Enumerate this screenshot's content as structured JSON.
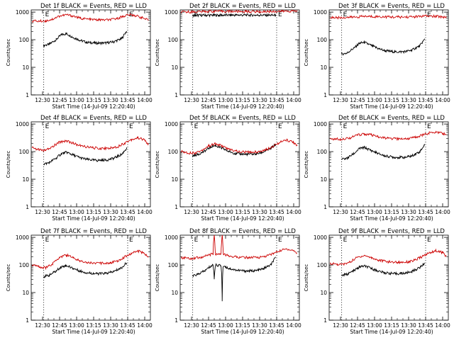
{
  "figure": {
    "background": "#ffffff",
    "event_color": "#000000",
    "lld_color": "#cc0000"
  },
  "chart_data": [
    {
      "type": "line",
      "title": "Det 1f BLACK = Events, RED = LLD",
      "xlabel": "Start Time (14-Jul-09 12:20:40)",
      "ylabel": "Counts/sec",
      "yscale": "log",
      "ylim": [
        1,
        1200
      ],
      "xlim": [
        12.3333,
        14.0833
      ],
      "x_ticks": [
        "12:30",
        "12:45",
        "13:00",
        "13:15",
        "13:30",
        "13:45",
        "14:00"
      ],
      "y_ticks": [
        "1",
        "10",
        "100",
        "1000"
      ],
      "vlines": [
        12.5167,
        13.75
      ],
      "marker_labels": [
        "E",
        "E"
      ],
      "series": [
        {
          "name": "Events",
          "color": "#000000",
          "x": [
            12.5167,
            12.6,
            12.7,
            12.7833,
            12.85,
            12.95,
            13.05,
            13.15,
            13.3,
            13.45,
            13.55,
            13.6667,
            13.7333
          ],
          "y": [
            62,
            68,
            100,
            155,
            165,
            120,
            95,
            80,
            75,
            77,
            85,
            110,
            200
          ]
        },
        {
          "name": "LLD",
          "color": "#cc0000",
          "x": [
            12.35,
            12.45,
            12.55,
            12.65,
            12.75,
            12.85,
            12.95,
            13.05,
            13.2,
            13.35,
            13.5,
            13.6,
            13.7,
            13.75,
            13.85,
            13.95,
            14.05
          ],
          "y": [
            480,
            470,
            480,
            560,
            720,
            800,
            720,
            600,
            540,
            520,
            520,
            600,
            720,
            800,
            760,
            640,
            500
          ]
        }
      ]
    },
    {
      "type": "line",
      "title": "Det 2f BLACK = Events, RED = LLD",
      "xlabel": "Start Time (14-Jul-09 12:20:40)",
      "ylabel": "Counts/sec",
      "yscale": "log",
      "ylim": [
        1,
        1200
      ],
      "xlim": [
        12.3333,
        14.0833
      ],
      "x_ticks": [
        "12:30",
        "12:45",
        "13:00",
        "13:15",
        "13:30",
        "13:45",
        "14:00"
      ],
      "y_ticks": [
        "1",
        "10",
        "100",
        "1000"
      ],
      "vlines": [
        12.5167,
        13.75
      ],
      "marker_labels": [
        "E",
        "E"
      ],
      "series": [
        {
          "name": "Events",
          "color": "#000000",
          "x": [
            12.5167,
            12.7,
            12.9,
            13.1,
            13.3,
            13.5,
            13.7333
          ],
          "y": [
            760,
            770,
            775,
            780,
            780,
            775,
            770
          ]
        },
        {
          "name": "LLD",
          "color": "#cc0000",
          "x": [
            12.35,
            12.5,
            12.7,
            12.9,
            13.1,
            13.3,
            13.5,
            13.7,
            13.9,
            14.05
          ],
          "y": [
            1000,
            1020,
            1060,
            1080,
            1060,
            1050,
            1040,
            1060,
            1080,
            1100
          ]
        }
      ]
    },
    {
      "type": "line",
      "title": "Det 3f BLACK = Events, RED = LLD",
      "xlabel": "Start Time (14-Jul-09 12:20:40)",
      "ylabel": "Counts/sec",
      "yscale": "log",
      "ylim": [
        1,
        1200
      ],
      "xlim": [
        12.3333,
        14.0833
      ],
      "x_ticks": [
        "12:30",
        "12:45",
        "13:00",
        "13:15",
        "13:30",
        "13:45",
        "14:00"
      ],
      "y_ticks": [
        "1",
        "10",
        "100",
        "1000"
      ],
      "vlines": [
        12.5167,
        13.75
      ],
      "marker_labels": [
        "E",
        "E"
      ],
      "series": [
        {
          "name": "Events",
          "color": "#000000",
          "x": [
            12.5167,
            12.6,
            12.7,
            12.7833,
            12.85,
            12.95,
            13.05,
            13.15,
            13.3,
            13.45,
            13.55,
            13.6667,
            13.7333
          ],
          "y": [
            30,
            33,
            50,
            75,
            80,
            62,
            48,
            40,
            36,
            37,
            42,
            60,
            100
          ]
        },
        {
          "name": "LLD",
          "color": "#cc0000",
          "x": [
            12.35,
            12.5,
            12.7,
            12.85,
            13.0,
            13.2,
            13.4,
            13.6,
            13.75,
            13.9,
            14.05
          ],
          "y": [
            640,
            630,
            660,
            700,
            690,
            670,
            660,
            680,
            720,
            700,
            660
          ]
        }
      ]
    },
    {
      "type": "line",
      "title": "Det 4f BLACK = Events, RED = LLD",
      "xlabel": "Start Time (14-Jul-09 12:20:40)",
      "ylabel": "Counts/sec",
      "yscale": "log",
      "ylim": [
        1,
        1200
      ],
      "xlim": [
        12.3333,
        14.0833
      ],
      "x_ticks": [
        "12:30",
        "12:45",
        "13:00",
        "13:15",
        "13:30",
        "13:45",
        "14:00"
      ],
      "y_ticks": [
        "1",
        "10",
        "100",
        "1000"
      ],
      "vlines": [
        12.5167,
        13.75
      ],
      "marker_labels": [
        "E",
        "E"
      ],
      "series": [
        {
          "name": "Events",
          "color": "#000000",
          "x": [
            12.5167,
            12.6,
            12.7,
            12.7833,
            12.85,
            12.95,
            13.05,
            13.15,
            13.3,
            13.45,
            13.55,
            13.6667,
            13.7333
          ],
          "y": [
            35,
            40,
            58,
            85,
            95,
            75,
            60,
            52,
            48,
            50,
            58,
            80,
            130
          ]
        },
        {
          "name": "LLD",
          "color": "#cc0000",
          "x": [
            12.35,
            12.45,
            12.55,
            12.65,
            12.75,
            12.85,
            12.95,
            13.05,
            13.2,
            13.35,
            13.5,
            13.6,
            13.7,
            13.8,
            13.9,
            14.0,
            14.05
          ],
          "y": [
            140,
            115,
            110,
            150,
            220,
            250,
            200,
            165,
            140,
            130,
            135,
            150,
            200,
            270,
            320,
            260,
            180
          ]
        }
      ]
    },
    {
      "type": "line",
      "title": "Det 5f BLACK = Events, RED = LLD",
      "xlabel": "Start Time (14-Jul-09 12:20:40)",
      "ylabel": "Counts/sec",
      "yscale": "log",
      "ylim": [
        1,
        1200
      ],
      "xlim": [
        12.3333,
        14.0833
      ],
      "x_ticks": [
        "12:30",
        "12:45",
        "13:00",
        "13:15",
        "13:30",
        "13:45",
        "14:00"
      ],
      "y_ticks": [
        "1",
        "10",
        "100",
        "1000"
      ],
      "vlines": [
        12.5167,
        13.75
      ],
      "marker_labels": [
        "E",
        "E"
      ],
      "series": [
        {
          "name": "Events",
          "color": "#000000",
          "x": [
            12.5167,
            12.6,
            12.7,
            12.7833,
            12.85,
            12.95,
            13.05,
            13.15,
            13.3,
            13.45,
            13.55,
            13.6667,
            13.7333
          ],
          "y": [
            70,
            80,
            105,
            150,
            165,
            130,
            100,
            85,
            80,
            82,
            95,
            130,
            180
          ]
        },
        {
          "name": "LLD",
          "color": "#cc0000",
          "x": [
            12.35,
            12.45,
            12.55,
            12.65,
            12.75,
            12.85,
            12.95,
            13.05,
            13.2,
            13.35,
            13.5,
            13.6,
            13.7,
            13.8,
            13.9,
            14.0,
            14.05
          ],
          "y": [
            100,
            90,
            90,
            110,
            160,
            190,
            160,
            120,
            100,
            95,
            100,
            120,
            160,
            220,
            260,
            220,
            160
          ]
        }
      ]
    },
    {
      "type": "line",
      "title": "Det 6f BLACK = Events, RED = LLD",
      "xlabel": "Start Time (14-Jul-09 12:20:40)",
      "ylabel": "Counts/sec",
      "yscale": "log",
      "ylim": [
        1,
        1200
      ],
      "xlim": [
        12.3333,
        14.0833
      ],
      "x_ticks": [
        "12:30",
        "12:45",
        "13:00",
        "13:15",
        "13:30",
        "13:45",
        "14:00"
      ],
      "y_ticks": [
        "1",
        "10",
        "100",
        "1000"
      ],
      "vlines": [
        12.5167,
        13.75
      ],
      "marker_labels": [
        "E",
        "E"
      ],
      "series": [
        {
          "name": "Events",
          "color": "#000000",
          "x": [
            12.5167,
            12.6,
            12.7,
            12.7833,
            12.85,
            12.95,
            13.05,
            13.15,
            13.3,
            13.45,
            13.55,
            13.6667,
            13.7333
          ],
          "y": [
            52,
            58,
            85,
            130,
            140,
            110,
            85,
            70,
            62,
            62,
            70,
            100,
            170
          ]
        },
        {
          "name": "LLD",
          "color": "#cc0000",
          "x": [
            12.35,
            12.5,
            12.65,
            12.75,
            12.85,
            12.95,
            13.05,
            13.2,
            13.35,
            13.5,
            13.6,
            13.7,
            13.8,
            13.9,
            14.0,
            14.05
          ],
          "y": [
            290,
            285,
            320,
            400,
            440,
            400,
            340,
            300,
            290,
            300,
            330,
            400,
            470,
            520,
            460,
            400
          ]
        }
      ]
    },
    {
      "type": "line",
      "title": "Det 7f BLACK = Events, RED = LLD",
      "xlabel": "Start Time (14-Jul-09 12:20:40)",
      "ylabel": "Counts/sec",
      "yscale": "log",
      "ylim": [
        1,
        1200
      ],
      "xlim": [
        12.3333,
        14.0833
      ],
      "x_ticks": [
        "12:30",
        "12:45",
        "13:00",
        "13:15",
        "13:30",
        "13:45",
        "14:00"
      ],
      "y_ticks": [
        "1",
        "10",
        "100",
        "1000"
      ],
      "vlines": [
        12.5167,
        13.75
      ],
      "marker_labels": [
        "E",
        "E"
      ],
      "series": [
        {
          "name": "Events",
          "color": "#000000",
          "x": [
            12.5167,
            12.6,
            12.7,
            12.7833,
            12.85,
            12.95,
            13.05,
            13.15,
            13.3,
            13.45,
            13.55,
            13.6667,
            13.7333
          ],
          "y": [
            38,
            42,
            60,
            88,
            95,
            75,
            60,
            52,
            48,
            50,
            58,
            80,
            120
          ]
        },
        {
          "name": "LLD",
          "color": "#cc0000",
          "x": [
            12.35,
            12.45,
            12.55,
            12.65,
            12.75,
            12.85,
            12.95,
            13.05,
            13.2,
            13.35,
            13.5,
            13.6,
            13.7,
            13.8,
            13.9,
            14.0,
            14.05
          ],
          "y": [
            100,
            85,
            80,
            110,
            190,
            230,
            180,
            140,
            120,
            115,
            120,
            140,
            190,
            260,
            320,
            260,
            190
          ]
        }
      ]
    },
    {
      "type": "line",
      "title": "Det 8f BLACK = Events, RED = LLD",
      "xlabel": "Start Time (14-Jul-09 12:20:40)",
      "ylabel": "Counts/sec",
      "yscale": "log",
      "ylim": [
        1,
        1200
      ],
      "xlim": [
        12.3333,
        14.0833
      ],
      "x_ticks": [
        "12:30",
        "12:45",
        "13:00",
        "13:15",
        "13:30",
        "13:45",
        "14:00"
      ],
      "y_ticks": [
        "1",
        "10",
        "100",
        "1000"
      ],
      "vlines": [
        12.5167,
        13.75
      ],
      "marker_labels": [
        "E",
        "E"
      ],
      "series": [
        {
          "name": "Events",
          "color": "#000000",
          "x": [
            12.5167,
            12.6,
            12.7,
            12.7833,
            12.8167,
            12.8333,
            12.85,
            12.9333,
            12.95,
            12.9667,
            13.0,
            13.05,
            13.15,
            13.3,
            13.45,
            13.55,
            13.6667,
            13.7333
          ],
          "y": [
            40,
            46,
            62,
            90,
            100,
            30,
            100,
            95,
            5,
            95,
            85,
            75,
            65,
            60,
            62,
            72,
            100,
            180
          ]
        },
        {
          "name": "LLD",
          "color": "#cc0000",
          "x": [
            12.35,
            12.5,
            12.65,
            12.75,
            12.8167,
            12.8333,
            12.85,
            12.9333,
            12.95,
            12.9667,
            13.05,
            13.2,
            13.35,
            13.5,
            13.6,
            13.7,
            13.8,
            13.9,
            14.0,
            14.05
          ],
          "y": [
            180,
            175,
            190,
            230,
            250,
            1200,
            250,
            240,
            1200,
            240,
            210,
            190,
            185,
            190,
            210,
            260,
            330,
            380,
            330,
            260
          ]
        }
      ]
    },
    {
      "type": "line",
      "title": "Det 9f BLACK = Events, RED = LLD",
      "xlabel": "Start Time (14-Jul-09 12:20:40)",
      "ylabel": "Counts/sec",
      "yscale": "log",
      "ylim": [
        1,
        1200
      ],
      "xlim": [
        12.3333,
        14.0833
      ],
      "x_ticks": [
        "12:30",
        "12:45",
        "13:00",
        "13:15",
        "13:30",
        "13:45",
        "14:00"
      ],
      "y_ticks": [
        "1",
        "10",
        "100",
        "1000"
      ],
      "vlines": [
        12.5167,
        13.75
      ],
      "marker_labels": [
        "E",
        "E"
      ],
      "series": [
        {
          "name": "Events",
          "color": "#000000",
          "x": [
            12.5167,
            12.6,
            12.7,
            12.7833,
            12.85,
            12.95,
            13.05,
            13.15,
            13.3,
            13.45,
            13.55,
            13.6667,
            13.7333
          ],
          "y": [
            42,
            46,
            62,
            85,
            92,
            75,
            60,
            52,
            48,
            50,
            58,
            80,
            115
          ]
        },
        {
          "name": "LLD",
          "color": "#cc0000",
          "x": [
            12.35,
            12.45,
            12.55,
            12.65,
            12.75,
            12.85,
            12.95,
            13.05,
            13.2,
            13.35,
            13.5,
            13.6,
            13.7,
            13.8,
            13.9,
            14.0,
            14.05
          ],
          "y": [
            115,
            105,
            105,
            130,
            190,
            220,
            185,
            150,
            130,
            125,
            130,
            150,
            200,
            270,
            330,
            280,
            210
          ]
        }
      ]
    }
  ]
}
